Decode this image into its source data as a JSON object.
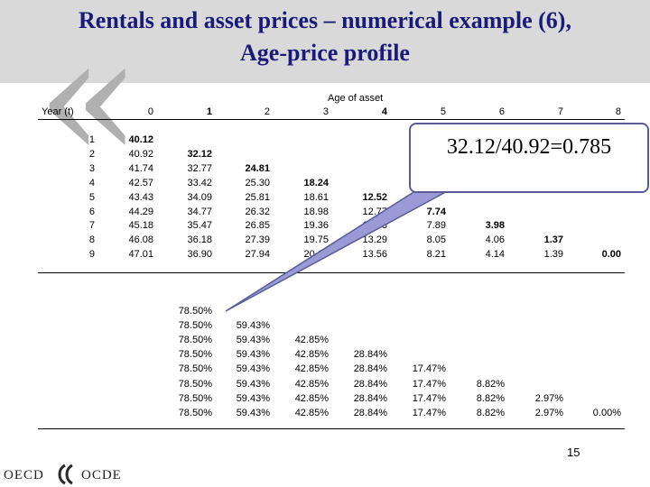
{
  "slide": {
    "title_line1": "Rentals and asset prices – numerical example (6),",
    "title_line2": "Age-price profile",
    "callout": "32.12/40.92=0.785",
    "page_number": "15",
    "logo_left": "OECD",
    "logo_right": "OCDE"
  },
  "table": {
    "header_age_label": "Age of asset",
    "header_year_label": "Year (t)",
    "age_columns": [
      "0",
      "1",
      "2",
      "3",
      "4",
      "5",
      "6",
      "7",
      "8"
    ],
    "bold_age_columns": [
      1,
      4
    ],
    "year_labels": [
      "1",
      "2",
      "3",
      "4",
      "5",
      "6",
      "7",
      "8",
      "9"
    ],
    "prices": [
      [
        "40.12",
        "",
        "",
        "",
        "",
        "",
        "",
        "",
        ""
      ],
      [
        "40.92",
        "32.12",
        "",
        "",
        "",
        "",
        "",
        "",
        ""
      ],
      [
        "41.74",
        "32.77",
        "24.81",
        "",
        "",
        "",
        "",
        "",
        ""
      ],
      [
        "42.57",
        "33.42",
        "25.30",
        "18.24",
        "",
        "",
        "",
        "",
        ""
      ],
      [
        "43.43",
        "34.09",
        "25.81",
        "18.61",
        "12.52",
        "",
        "",
        "",
        ""
      ],
      [
        "44.29",
        "34.77",
        "26.32",
        "18.98",
        "12.77",
        "7.74",
        "",
        "",
        ""
      ],
      [
        "45.18",
        "35.47",
        "26.85",
        "19.36",
        "13.03",
        "7.89",
        "3.98",
        "",
        ""
      ],
      [
        "46.08",
        "36.18",
        "27.39",
        "19.75",
        "13.29",
        "8.05",
        "4.06",
        "1.37",
        ""
      ],
      [
        "47.01",
        "36.90",
        "27.94",
        "20.14",
        "13.56",
        "8.21",
        "4.14",
        "1.39",
        "0.00"
      ]
    ],
    "ratios": [
      [
        "78.50%",
        "",
        "",
        "",
        "",
        "",
        "",
        ""
      ],
      [
        "78.50%",
        "59.43%",
        "",
        "",
        "",
        "",
        "",
        ""
      ],
      [
        "78.50%",
        "59.43%",
        "42.85%",
        "",
        "",
        "",
        "",
        ""
      ],
      [
        "78.50%",
        "59.43%",
        "42.85%",
        "28.84%",
        "",
        "",
        "",
        ""
      ],
      [
        "78.50%",
        "59.43%",
        "42.85%",
        "28.84%",
        "17.47%",
        "",
        "",
        ""
      ],
      [
        "78.50%",
        "59.43%",
        "42.85%",
        "28.84%",
        "17.47%",
        "8.82%",
        "",
        ""
      ],
      [
        "78.50%",
        "59.43%",
        "42.85%",
        "28.84%",
        "17.47%",
        "8.82%",
        "2.97%",
        ""
      ],
      [
        "78.50%",
        "59.43%",
        "42.85%",
        "28.84%",
        "17.47%",
        "8.82%",
        "2.97%",
        "0.00%"
      ]
    ]
  }
}
